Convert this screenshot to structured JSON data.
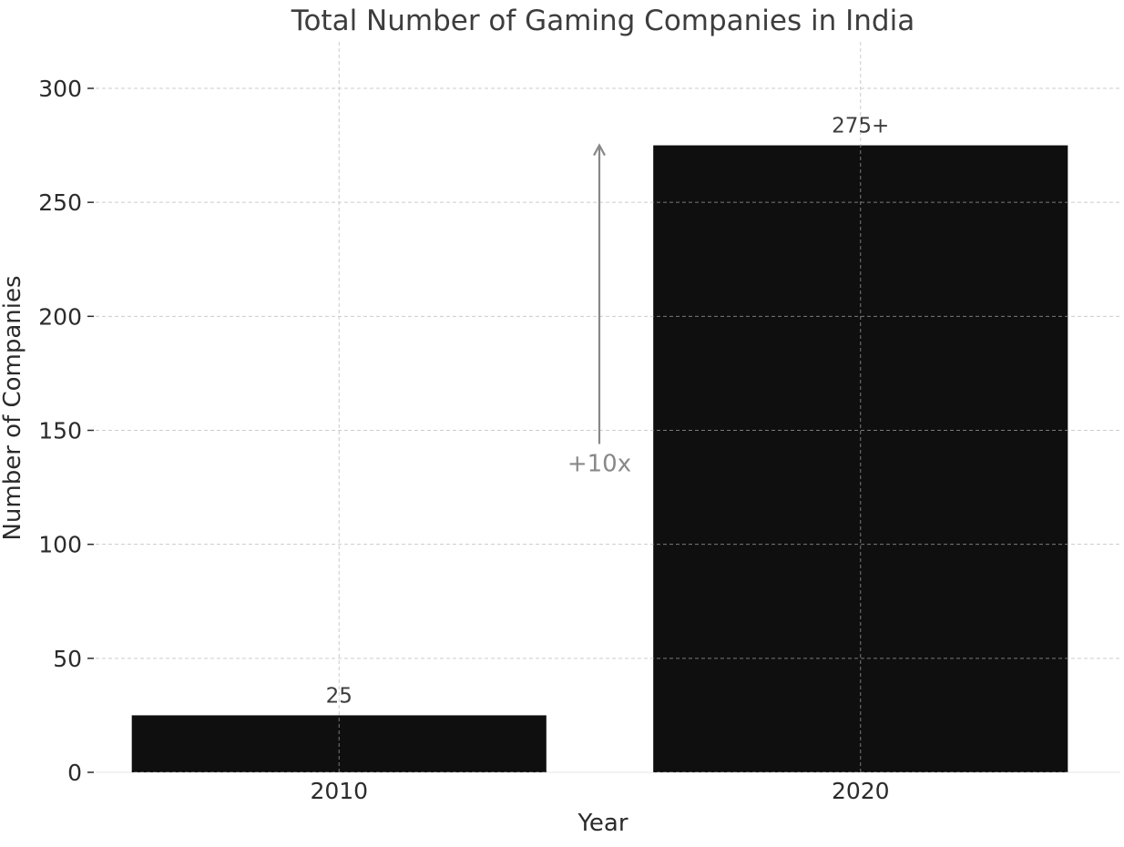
{
  "chart_data": {
    "type": "bar",
    "title": "Total Number of Gaming Companies in India",
    "xlabel": "Year",
    "ylabel": "Number of Companies",
    "categories": [
      "2010",
      "2020"
    ],
    "values": [
      25,
      275
    ],
    "data_labels": [
      "25",
      "275+"
    ],
    "ylim": [
      0,
      320
    ],
    "yticks": [
      0,
      50,
      100,
      150,
      200,
      250,
      300
    ],
    "grid": true,
    "bar_color": "#0f0f0f",
    "annotation": {
      "text": "+10x",
      "arrow_from_value": 160,
      "arrow_to_value": 275,
      "color": "#888888"
    }
  }
}
